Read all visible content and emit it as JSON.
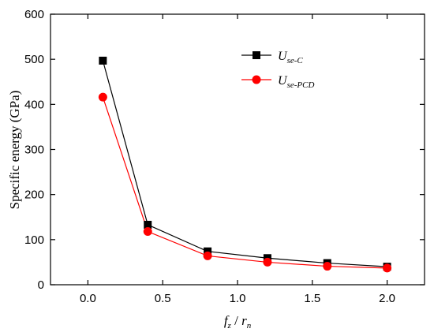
{
  "chart_data": {
    "type": "line",
    "title": "",
    "xlabel": {
      "main": "f",
      "sub": "z",
      "sep": " / ",
      "main2": "r",
      "sub2": "n"
    },
    "ylabel": "Specific energy (GPa)",
    "xlim": [
      -0.25,
      2.25
    ],
    "ylim": [
      0,
      600
    ],
    "xticks": [
      0.0,
      0.5,
      1.0,
      1.5,
      2.0
    ],
    "xtick_labels": [
      "0.0",
      "0.5",
      "1.0",
      "1.5",
      "2.0"
    ],
    "yticks": [
      0,
      100,
      200,
      300,
      400,
      500,
      600
    ],
    "ytick_labels": [
      "0",
      "100",
      "200",
      "300",
      "400",
      "500",
      "600"
    ],
    "grid": false,
    "legend_position": "top-right",
    "x": [
      0.1,
      0.4,
      0.8,
      1.2,
      1.6,
      2.0
    ],
    "series": [
      {
        "name_main": "U",
        "name_sub": "se-C",
        "marker": "square",
        "color": "#000000",
        "values": [
          497,
          133,
          74,
          59,
          48,
          40
        ]
      },
      {
        "name_main": "U",
        "name_sub": "se-PCD",
        "marker": "circle",
        "color": "#ff0000",
        "values": [
          416,
          118,
          64,
          50,
          41,
          37
        ]
      }
    ]
  }
}
